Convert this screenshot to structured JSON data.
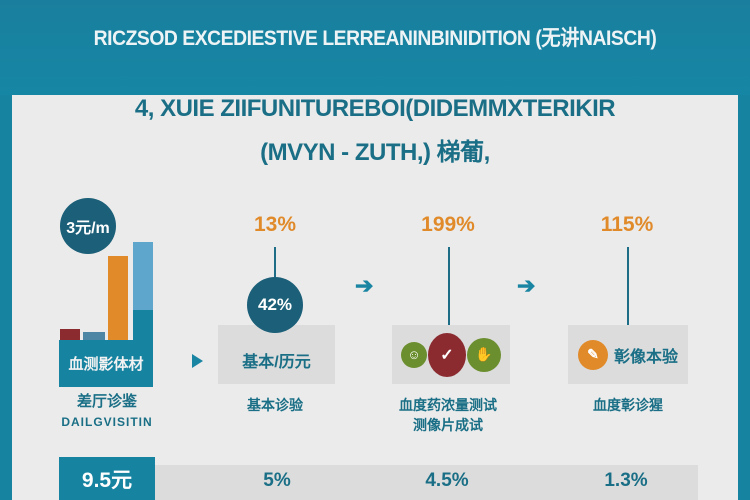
{
  "header": {
    "title": "RICZSOD EXCEDIESTIVE LERREANINBINIDITION (无讲NAISCH)"
  },
  "subtitle": {
    "line1": "4, XUIE ZIIFUNITUREBOI(DIDEMMXTERIKIR",
    "line2": "(MVYN - ZUTH,) 梯葡,"
  },
  "colors": {
    "teal": "#1683a1",
    "dark_teal": "#1b5f78",
    "orange": "#e08a2a",
    "red": "#8b2b30",
    "green": "#6b8e2e",
    "light_blue": "#5fa6cc",
    "gray_box": "#dcdcdc"
  },
  "steps": [
    {
      "circle": "3元/m",
      "block": "血测影体材",
      "label1": "差厅诊鉴",
      "label2": "DAILGVISITIN"
    },
    {
      "top": "13%",
      "circle": "42%",
      "box": "基本/历元",
      "label1": "基本诊验"
    },
    {
      "top": "199%",
      "icons": [
        "smile-icon",
        "check-icon",
        "hand-icon"
      ],
      "label1": "血度药浓量测试",
      "label2": "测像片成试"
    },
    {
      "top": "115%",
      "icon": "edit-icon",
      "box": "彰像本验",
      "label1": "血度彰诊猩"
    }
  ],
  "bottom": {
    "total": "9.5元",
    "values": [
      "5%",
      "4.5%",
      "1.3%"
    ]
  }
}
